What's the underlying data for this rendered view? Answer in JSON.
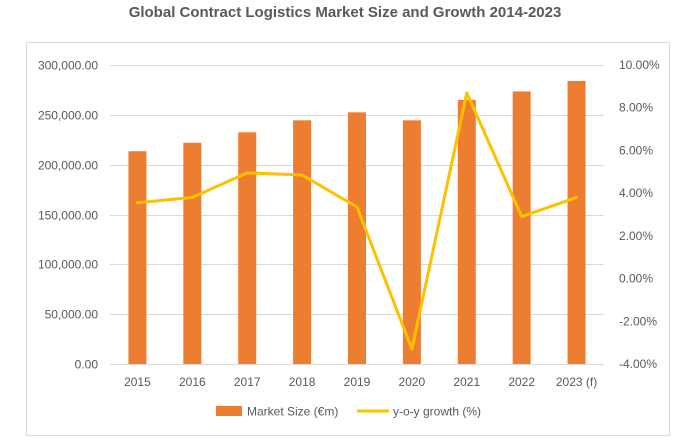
{
  "chart_data": {
    "type": "bar",
    "title": "Global Contract Logistics Market Size and Growth 2014-2023",
    "categories": [
      "2015",
      "2016",
      "2017",
      "2018",
      "2019",
      "2020",
      "2021",
      "2022",
      "2023 (f)"
    ],
    "series": [
      {
        "name": "Market Size (€m)",
        "type": "bar",
        "axis": "left",
        "color": "#ED7D31",
        "values": [
          213500,
          222000,
          232500,
          244500,
          252500,
          244500,
          265000,
          273500,
          284000
        ]
      },
      {
        "name": "y-o-y growth (%)",
        "type": "line",
        "axis": "right",
        "color": "#FFC000",
        "values": [
          3.55,
          3.8,
          4.95,
          4.85,
          3.35,
          -3.3,
          8.7,
          2.9,
          3.8
        ]
      }
    ],
    "y_left": {
      "lim": [
        0,
        300000
      ],
      "ticks": [
        0,
        50000,
        100000,
        150000,
        200000,
        250000,
        300000
      ],
      "tick_labels": [
        "0.00",
        "50,000.00",
        "100,000.00",
        "150,000.00",
        "200,000.00",
        "250,000.00",
        "300,000.00"
      ]
    },
    "y_right": {
      "lim": [
        -4,
        10
      ],
      "ticks": [
        -4,
        -2,
        0,
        2,
        4,
        6,
        8,
        10
      ],
      "tick_labels": [
        "-4.00%",
        "-2.00%",
        "0.00%",
        "2.00%",
        "4.00%",
        "6.00%",
        "8.00%",
        "10.00%"
      ]
    },
    "grid": true,
    "legend_position": "bottom"
  }
}
